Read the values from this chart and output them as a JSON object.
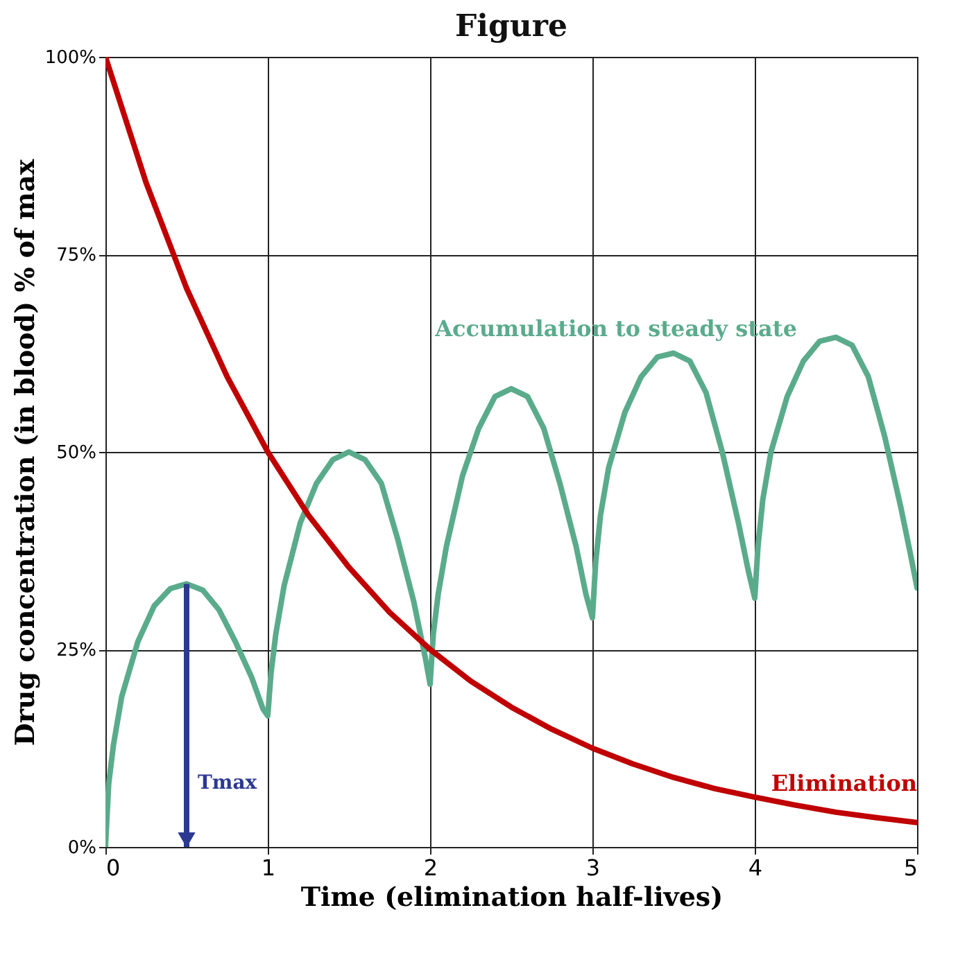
{
  "chart_data": {
    "type": "line",
    "title": "Figure",
    "xlabel": "Time (elimination half-lives)",
    "ylabel": "Drug concentration (in blood) % of max",
    "xlim": [
      0,
      5
    ],
    "xticks": [
      0,
      1,
      2,
      3,
      4,
      5
    ],
    "ylim": [
      0,
      100
    ],
    "yticks": [
      {
        "value": 0,
        "label": "0%"
      },
      {
        "value": 25,
        "label": "25%"
      },
      {
        "value": 50,
        "label": "50%"
      },
      {
        "value": 75,
        "label": "75%"
      },
      {
        "value": 100,
        "label": "100%"
      }
    ],
    "grid": true,
    "legend": false,
    "marker": "none",
    "line_style": "solid",
    "annotations": [
      "Tmax"
    ],
    "series": [
      {
        "name": "Accumulation to steady state",
        "color": "#5aab8c",
        "x": [
          0,
          0.02,
          0.05,
          0.1,
          0.2,
          0.3,
          0.4,
          0.5,
          0.6,
          0.7,
          0.8,
          0.9,
          0.97,
          1.0,
          1.02,
          1.05,
          1.1,
          1.2,
          1.3,
          1.4,
          1.5,
          1.6,
          1.7,
          1.8,
          1.9,
          1.97,
          2.0,
          2.02,
          2.05,
          2.1,
          2.2,
          2.3,
          2.4,
          2.5,
          2.6,
          2.7,
          2.8,
          2.9,
          2.96,
          3.0,
          3.02,
          3.05,
          3.1,
          3.2,
          3.3,
          3.4,
          3.5,
          3.6,
          3.7,
          3.8,
          3.9,
          3.96,
          4.0,
          4.02,
          4.05,
          4.1,
          4.2,
          4.3,
          4.4,
          4.5,
          4.6,
          4.7,
          4.8,
          4.9,
          4.96,
          5.0
        ],
        "values": [
          0,
          8,
          13,
          19,
          26,
          30.5,
          32.7,
          33.3,
          32.5,
          30,
          26,
          21.5,
          17.5,
          16.6,
          22,
          27,
          33,
          41,
          46,
          49,
          50,
          49,
          46,
          39,
          31,
          24,
          20.6,
          27,
          32,
          38,
          47,
          53,
          57,
          58,
          57,
          53,
          46,
          38,
          32,
          29,
          36,
          42,
          48,
          55,
          59.5,
          62,
          62.5,
          61.5,
          57.5,
          50,
          41,
          35,
          31.5,
          38,
          44,
          50,
          57,
          61.5,
          64,
          64.5,
          63.5,
          59.5,
          52,
          43,
          37,
          32.8
        ]
      },
      {
        "name": "Elimination",
        "color": "#c00000",
        "x": [
          0,
          0.25,
          0.5,
          0.75,
          1,
          1.25,
          1.5,
          1.75,
          2,
          2.25,
          2.5,
          2.75,
          3,
          3.25,
          3.5,
          3.75,
          4,
          4.25,
          4.5,
          4.75,
          5
        ],
        "values": [
          100,
          84.1,
          70.7,
          59.5,
          50,
          42,
          35.4,
          29.7,
          25,
          21,
          17.7,
          14.9,
          12.5,
          10.5,
          8.8,
          7.4,
          6.3,
          5.3,
          4.4,
          3.7,
          3.1
        ]
      }
    ]
  }
}
